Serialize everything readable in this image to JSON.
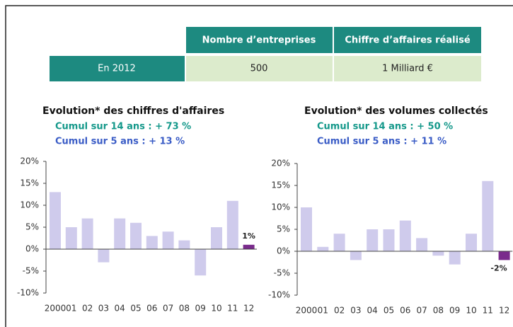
{
  "table": {
    "header": [
      "Nombre d’entreprises",
      "Chiffre d’affaires réalisé"
    ],
    "rows": [
      [
        "En 2012",
        "500",
        "1 Milliard €"
      ]
    ]
  },
  "chart_data": [
    {
      "type": "bar",
      "title": "Evolution* des chiffres d'affaires",
      "subtitles": [
        "Cumul sur 14 ans : + 73 %",
        "Cumul sur 5 ans : + 13 %"
      ],
      "subtitle_colors": [
        "#14988a",
        "#3a5cc6"
      ],
      "categories": [
        "2000",
        "01",
        "02",
        "03",
        "04",
        "05",
        "06",
        "07",
        "08",
        "09",
        "10",
        "11",
        "12"
      ],
      "values": [
        13,
        5,
        7,
        -3,
        7,
        6,
        3,
        4,
        2,
        -6,
        5,
        11,
        1
      ],
      "value_labels": [
        null,
        null,
        null,
        null,
        null,
        null,
        null,
        null,
        null,
        null,
        null,
        null,
        "1%"
      ],
      "colors": [
        "#cfcbec",
        "#cfcbec",
        "#cfcbec",
        "#cfcbec",
        "#cfcbec",
        "#cfcbec",
        "#cfcbec",
        "#cfcbec",
        "#cfcbec",
        "#cfcbec",
        "#cfcbec",
        "#cfcbec",
        "#7a2b8c"
      ],
      "ylim": [
        -10,
        20
      ],
      "yticks": [
        {
          "value": -10,
          "label": "-10%"
        },
        {
          "value": -5,
          "label": "-5%"
        },
        {
          "value": 0,
          "label": "0%"
        },
        {
          "value": 5,
          "label": "5%"
        },
        {
          "value": 10,
          "label": "10%"
        },
        {
          "value": 15,
          "label": "15%"
        },
        {
          "value": 20,
          "label": "20%"
        }
      ]
    },
    {
      "type": "bar",
      "title": "Evolution* des volumes collectés",
      "subtitles": [
        "Cumul sur 14 ans : + 50 %",
        "Cumul sur 5 ans : + 11 %"
      ],
      "subtitle_colors": [
        "#14988a",
        "#3a5cc6"
      ],
      "categories": [
        "2000",
        "01",
        "02",
        "03",
        "04",
        "05",
        "06",
        "07",
        "08",
        "09",
        "10",
        "11",
        "12"
      ],
      "values": [
        10,
        1,
        4,
        -2,
        5,
        5,
        7,
        3,
        -1,
        -3,
        4,
        16,
        -2
      ],
      "value_labels": [
        null,
        null,
        null,
        null,
        null,
        null,
        null,
        null,
        null,
        null,
        null,
        null,
        "-2%"
      ],
      "colors": [
        "#cfcbec",
        "#cfcbec",
        "#cfcbec",
        "#cfcbec",
        "#cfcbec",
        "#cfcbec",
        "#cfcbec",
        "#cfcbec",
        "#cfcbec",
        "#cfcbec",
        "#cfcbec",
        "#cfcbec",
        "#7a2b8c"
      ],
      "ylim": [
        -10,
        20
      ],
      "yticks": [
        {
          "value": -10,
          "label": "-10%"
        },
        {
          "value": -5,
          "label": "-5%"
        },
        {
          "value": 0,
          "label": "0%"
        },
        {
          "value": 5,
          "label": "5%"
        },
        {
          "value": 10,
          "label": "10%"
        },
        {
          "value": 15,
          "label": "15%"
        },
        {
          "value": 20,
          "label": "20%"
        }
      ]
    }
  ]
}
